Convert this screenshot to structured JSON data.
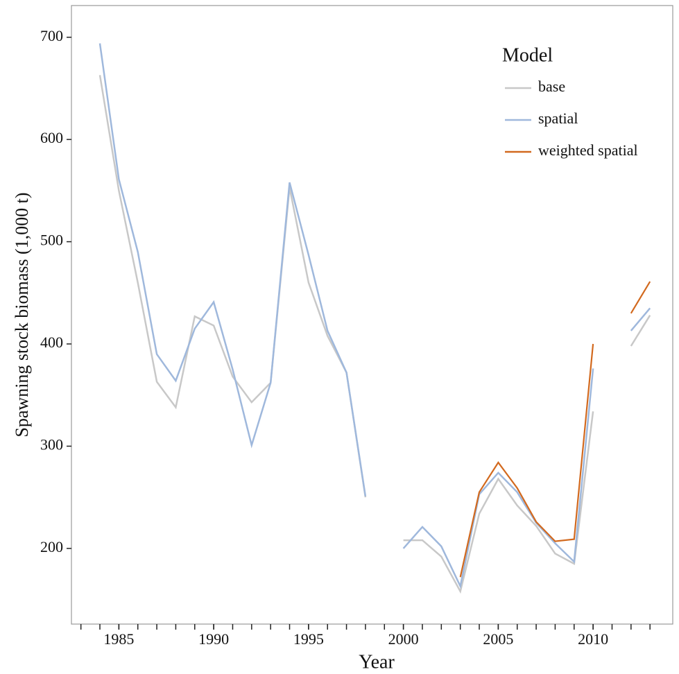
{
  "chart_data": {
    "type": "line",
    "x_label": "Year",
    "y_label": "Spawning stock biomass (1,000 t)",
    "legend_title": "Model",
    "legend_position": "top-right",
    "grid": false,
    "x": [
      1984,
      1985,
      1986,
      1987,
      1988,
      1989,
      1990,
      1991,
      1992,
      1993,
      1994,
      1995,
      1996,
      1997,
      1998,
      1999,
      2000,
      2001,
      2002,
      2003,
      2004,
      2005,
      2006,
      2007,
      2008,
      2009,
      2010,
      2011,
      2012,
      2013
    ],
    "series": [
      {
        "name": "base",
        "color": "#c8c8c8",
        "values": [
          663,
          550,
          460,
          363,
          338,
          427,
          418,
          368,
          343,
          362,
          553,
          460,
          408,
          372,
          250,
          null,
          208,
          208,
          192,
          158,
          234,
          268,
          242,
          222,
          195,
          185,
          334,
          null,
          398,
          428
        ]
      },
      {
        "name": "spatial",
        "color": "#9fb8dc",
        "values": [
          694,
          561,
          490,
          390,
          364,
          415,
          441,
          375,
          301,
          362,
          558,
          487,
          413,
          372,
          251,
          null,
          200,
          221,
          202,
          163,
          253,
          274,
          255,
          225,
          205,
          187,
          376,
          null,
          413,
          435
        ]
      },
      {
        "name": "weighted spatial",
        "color": "#d2691e",
        "values": [
          null,
          null,
          null,
          null,
          null,
          null,
          null,
          null,
          null,
          null,
          null,
          null,
          null,
          null,
          null,
          null,
          null,
          null,
          null,
          172,
          255,
          284,
          259,
          226,
          207,
          209,
          400,
          null,
          430,
          461
        ]
      }
    ],
    "xlim": [
      1982.5,
      2014.2
    ],
    "xticks": [
      1985,
      1990,
      1995,
      2000,
      2005,
      2010
    ],
    "x_minor_ticks": [
      1983,
      1984,
      1985,
      1986,
      1987,
      1988,
      1989,
      1990,
      1991,
      1992,
      1993,
      1994,
      1995,
      1996,
      1997,
      1998,
      1999,
      2000,
      2001,
      2002,
      2003,
      2004,
      2005,
      2006,
      2007,
      2008,
      2009,
      2010,
      2011,
      2012,
      2013
    ],
    "ylim": [
      126,
      731
    ],
    "yticks": [
      200,
      300,
      400,
      500,
      600,
      700
    ]
  }
}
